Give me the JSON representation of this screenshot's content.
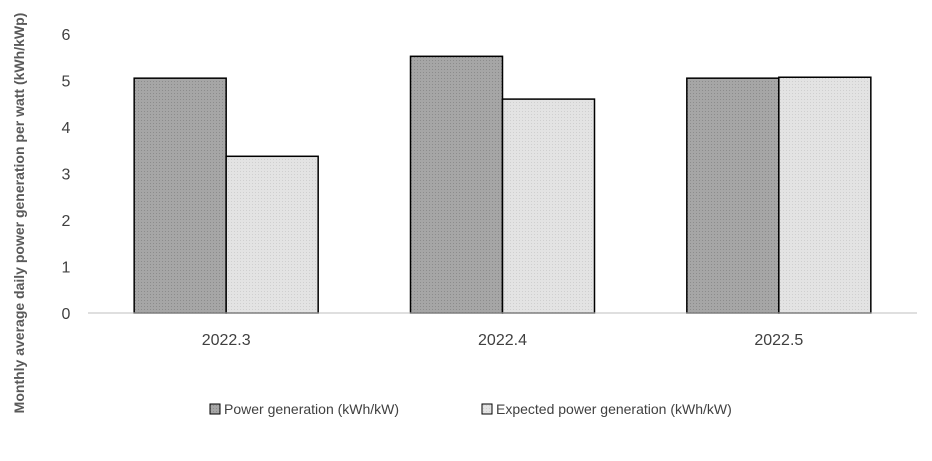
{
  "chart_data": {
    "type": "bar",
    "title": "",
    "xlabel": "",
    "ylabel": "Monthly average daily power generation per watt (kWh/kWp)",
    "categories": [
      "2022.3",
      "2022.4",
      "2022.5"
    ],
    "series": [
      {
        "name": "Power generation (kWh/kW)",
        "values": [
          5.05,
          5.52,
          5.05
        ],
        "color": "#a6a6a6"
      },
      {
        "name": "Expected power generation (kWh/kW)",
        "values": [
          3.37,
          4.6,
          5.07
        ],
        "color": "#e0e0e0"
      }
    ],
    "ylim": [
      0,
      6
    ],
    "yticks": [
      "0",
      "1",
      "2",
      "3",
      "4",
      "5",
      "6"
    ],
    "grid": false,
    "legend_position": "bottom"
  }
}
